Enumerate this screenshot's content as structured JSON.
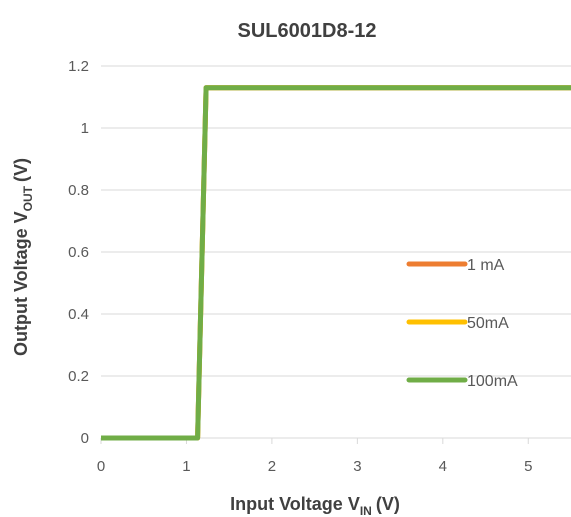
{
  "chart_data": {
    "type": "line",
    "title": "SUL6001D8-12",
    "xlabel": {
      "main": "Input Voltage V",
      "sub": "IN",
      "unit": "(V)"
    },
    "ylabel": {
      "main": "Output Voltage V",
      "sub": "OUT",
      "unit": "(V)"
    },
    "xlim": [
      0,
      5.5
    ],
    "ylim": [
      0,
      1.2
    ],
    "xticks": [
      0,
      1,
      2,
      3,
      4,
      5
    ],
    "yticks": [
      0,
      0.2,
      0.4,
      0.6,
      0.8,
      1,
      1.2
    ],
    "xtick_labels": [
      "0",
      "1",
      "2",
      "3",
      "4",
      "5"
    ],
    "ytick_labels": [
      "0",
      "0.2",
      "0.4",
      "0.6",
      "0.8",
      "1",
      "1.2"
    ],
    "grid": "horizontal",
    "legend_position": "right",
    "series": [
      {
        "name": "1 mA",
        "color": "#ED7D31",
        "x": [
          0,
          1.13,
          1.23,
          5.5
        ],
        "y": [
          0,
          0,
          1.13,
          1.13
        ]
      },
      {
        "name": "50mA",
        "color": "#FFC000",
        "x": [
          0,
          1.13,
          1.23,
          5.5
        ],
        "y": [
          0,
          0,
          1.13,
          1.13
        ]
      },
      {
        "name": "100mA",
        "color": "#70AD47",
        "x": [
          0,
          1.13,
          1.23,
          5.5
        ],
        "y": [
          0,
          0,
          1.13,
          1.13
        ]
      }
    ]
  }
}
